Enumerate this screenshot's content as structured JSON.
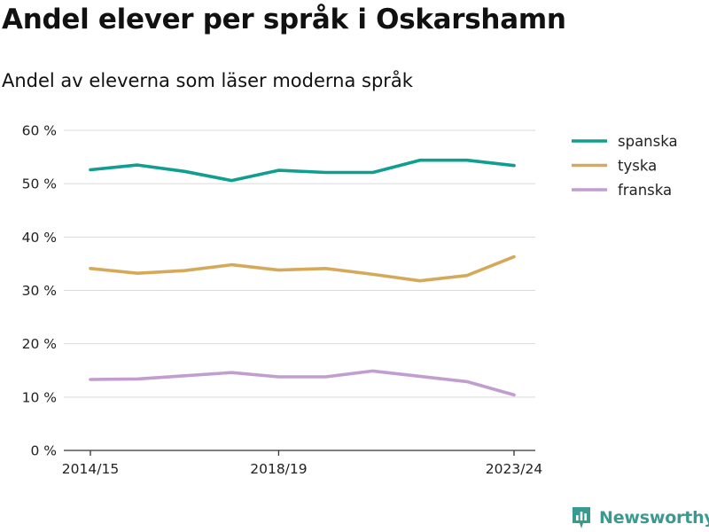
{
  "title": "Andel elever per språk i Oskarshamn",
  "subtitle": "Andel av eleverna som läser moderna språk",
  "brand": "Newsworthy",
  "chart_data": {
    "type": "line",
    "x": [
      "2014/15",
      "2015/16",
      "2016/17",
      "2017/18",
      "2018/19",
      "2019/20",
      "2020/21",
      "2021/22",
      "2022/23",
      "2023/24"
    ],
    "x_tick_labels": [
      "2014/15",
      "2018/19",
      "2023/24"
    ],
    "y_tick_labels": [
      "0 %",
      "10 %",
      "20 %",
      "30 %",
      "40 %",
      "50 %",
      "60 %"
    ],
    "ylim": [
      0,
      60
    ],
    "grid": true,
    "legend_position": "top-right",
    "series": [
      {
        "name": "spanska",
        "color": "#0f9e90",
        "values": [
          52.6,
          53.5,
          52.3,
          50.6,
          52.5,
          52.1,
          52.1,
          54.4,
          54.4,
          53.4
        ]
      },
      {
        "name": "tyska",
        "color": "#d4aa5a",
        "values": [
          34.1,
          33.2,
          33.7,
          34.8,
          33.8,
          34.1,
          33.0,
          31.8,
          32.8,
          36.3
        ]
      },
      {
        "name": "franska",
        "color": "#c29dd0",
        "values": [
          13.3,
          13.4,
          14.0,
          14.6,
          13.8,
          13.8,
          14.9,
          13.9,
          12.9,
          10.4
        ]
      }
    ]
  }
}
